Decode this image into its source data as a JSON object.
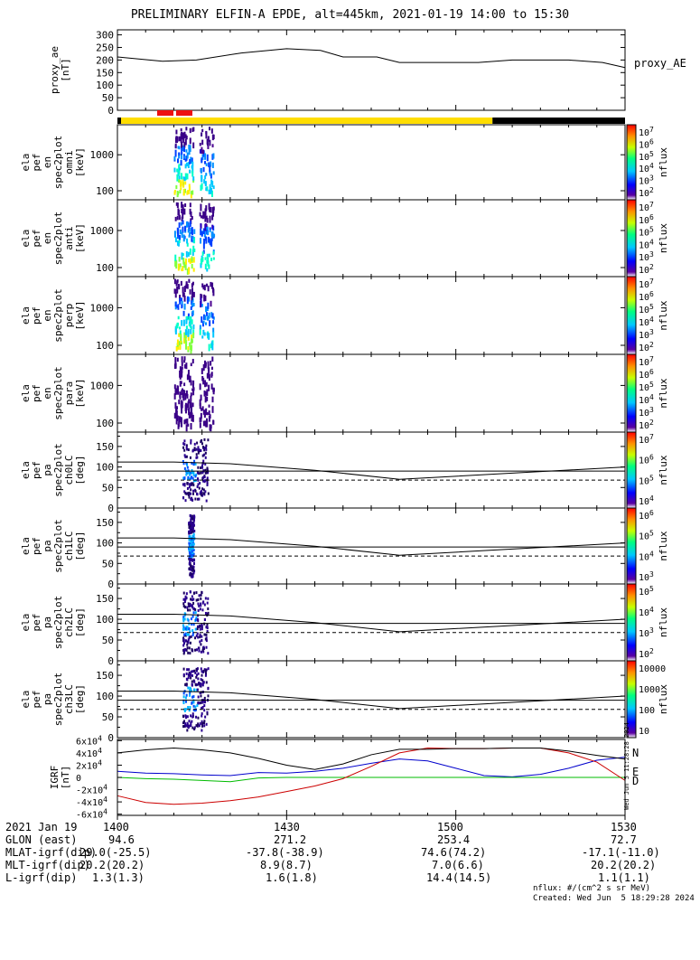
{
  "title": "PRELIMINARY ELFIN-A EPDE, alt=445km, 2021-01-19 14:00 to 15:30",
  "time_ticks": [
    "1400",
    "1430",
    "1500",
    "1530"
  ],
  "footer_table": {
    "rows": [
      {
        "label": "2021 Jan 19",
        "values": [
          "1400",
          "1430",
          "1500",
          "1530"
        ]
      },
      {
        "label": "GLON (east)",
        "values": [
          "94.6",
          "271.2",
          "253.4",
          "72.7"
        ]
      },
      {
        "label": "MLAT-igrf(dip)",
        "values": [
          "29.0(-25.5)",
          "-37.8(-38.9)",
          "74.6(74.2)",
          "-17.1(-11.0)"
        ]
      },
      {
        "label": "MLT-igrf(dip)",
        "values": [
          "20.2(20.2)",
          "8.9(8.7)",
          "7.0(6.6)",
          "20.2(20.2)"
        ]
      },
      {
        "label": "L-igrf(dip)",
        "values": [
          "1.3(1.3)",
          "1.6(1.8)",
          "14.4(14.5)",
          "1.1(1.1)"
        ]
      }
    ]
  },
  "notes": {
    "units": "nflux: #/(cm^2 s sr MeV)",
    "created": "Created: Wed Jun  5 18:29:28 2024",
    "side_stamp": "Wed Jun  5 11:28:28 2024"
  },
  "colors": {
    "science_bar": "#ffdd00",
    "dark_bar": "#000000",
    "marker": "#ee1111",
    "igrf_n": "#0000cc",
    "igrf_e": "#00bb00",
    "igrf_d": "#cc0000"
  },
  "chart_data": [
    {
      "type": "line",
      "ylabel": "proxy_ae\n[nT]",
      "yticks": [
        "0",
        "50",
        "100",
        "150",
        "200",
        "250",
        "300"
      ],
      "ylim": [
        0,
        320
      ],
      "legend": "proxy_AE",
      "x_minutes": [
        0,
        8,
        14,
        22,
        30,
        36,
        40,
        46,
        50,
        54,
        60,
        64,
        70,
        76,
        80,
        86,
        90
      ],
      "series": [
        {
          "name": "proxy_AE",
          "values": [
            212,
            195,
            200,
            228,
            245,
            238,
            212,
            212,
            190,
            190,
            190,
            190,
            200,
            200,
            200,
            190,
            170
          ]
        }
      ]
    },
    {
      "type": "heatmap",
      "ylabel": "ela\npef\nen\nspec2plot\nomni\n[keV]",
      "yticks": [
        "100",
        "1000"
      ],
      "colorbar": {
        "label": "nflux",
        "ticks": [
          "10^2",
          "10^3",
          "10^4",
          "10^5",
          "10^6",
          "10^7"
        ]
      }
    },
    {
      "type": "heatmap",
      "ylabel": "ela\npef\nen\nspec2plot\nanti\n[keV]",
      "yticks": [
        "100",
        "1000"
      ],
      "colorbar": {
        "label": "nflux",
        "ticks": [
          "10^2",
          "10^3",
          "10^4",
          "10^5",
          "10^6",
          "10^7"
        ]
      }
    },
    {
      "type": "heatmap",
      "ylabel": "ela\npef\nen\nspec2plot\nperp\n[keV]",
      "yticks": [
        "100",
        "1000"
      ],
      "colorbar": {
        "label": "nflux",
        "ticks": [
          "10^2",
          "10^3",
          "10^4",
          "10^5",
          "10^6",
          "10^7"
        ]
      }
    },
    {
      "type": "heatmap",
      "ylabel": "ela\npef\nen\nspec2plot\npara\n[keV]",
      "yticks": [
        "100",
        "1000"
      ],
      "colorbar": {
        "label": "nflux",
        "ticks": [
          "10^2",
          "10^3",
          "10^4",
          "10^5",
          "10^6",
          "10^7"
        ]
      }
    },
    {
      "type": "heatmap",
      "ylabel": "ela\npef\npa\nspec2plot\nch0LC\n[deg]",
      "yticks": [
        "0",
        "50",
        "100",
        "150"
      ],
      "colorbar": {
        "label": "nflux",
        "ticks": [
          "10^4",
          "10^5",
          "10^6",
          "10^7"
        ]
      }
    },
    {
      "type": "heatmap",
      "ylabel": "ela\npef\npa\nspec2plot\nch1LC\n[deg]",
      "yticks": [
        "0",
        "50",
        "100",
        "150"
      ],
      "colorbar": {
        "label": "nflux",
        "ticks": [
          "10^3",
          "10^4",
          "10^5",
          "10^6"
        ]
      }
    },
    {
      "type": "heatmap",
      "ylabel": "ela\npef\npa\nspec2plot\nch2LC\n[deg]",
      "yticks": [
        "0",
        "50",
        "100",
        "150"
      ],
      "colorbar": {
        "label": "nflux",
        "ticks": [
          "10^2",
          "10^3",
          "10^4",
          "10^5"
        ]
      }
    },
    {
      "type": "heatmap",
      "ylabel": "ela\npef\npa\nspec2plot\nch3LC\n[deg]",
      "yticks": [
        "0",
        "50",
        "100",
        "150"
      ],
      "colorbar": {
        "label": "nflux",
        "ticks": [
          "10",
          "100",
          "1000",
          "10000"
        ]
      }
    },
    {
      "type": "line",
      "ylabel": "IGRF\n[nT]",
      "yticks": [
        "-6x10^4",
        "-4x10^4",
        "-2x10^4",
        "0",
        "2x10^4",
        "4x10^4",
        "6x10^4"
      ],
      "ylim": [
        -62000,
        62000
      ],
      "x_minutes": [
        0,
        5,
        10,
        15,
        20,
        25,
        30,
        35,
        40,
        45,
        50,
        55,
        60,
        65,
        70,
        75,
        80,
        85,
        90
      ],
      "series": [
        {
          "name": "N",
          "values": [
            10000,
            7000,
            6000,
            4000,
            3000,
            8000,
            7000,
            10000,
            15000,
            23000,
            30000,
            27000,
            15000,
            3000,
            1000,
            5000,
            15000,
            28000,
            33000
          ]
        },
        {
          "name": "E",
          "values": [
            0,
            -2000,
            -3000,
            -5000,
            -7000,
            -1000,
            0,
            0,
            0,
            0,
            0,
            0,
            0,
            0,
            0,
            0,
            0,
            0,
            0
          ]
        },
        {
          "name": "D",
          "values": [
            -30000,
            -41000,
            -44000,
            -42000,
            -38000,
            -32000,
            -23000,
            -14000,
            -2000,
            18000,
            40000,
            48000,
            47000,
            47000,
            48000,
            48000,
            40000,
            25000,
            -5000
          ]
        },
        {
          "name": "",
          "values": [
            40000,
            45000,
            48000,
            45000,
            40000,
            31000,
            20000,
            13000,
            22000,
            37000,
            46000,
            46000,
            47000,
            47000,
            48000,
            48000,
            43000,
            36000,
            30000
          ]
        }
      ]
    }
  ]
}
